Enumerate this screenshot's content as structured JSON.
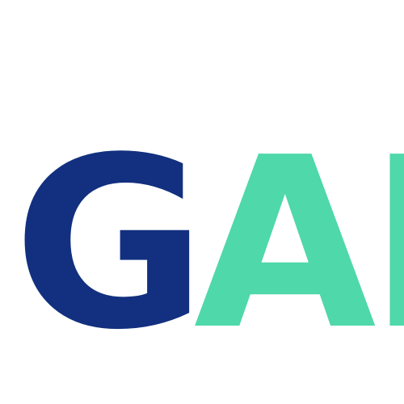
{
  "logo": {
    "primary_text": "G",
    "secondary_text": "APIs",
    "primary_color": "#12307f",
    "secondary_color": "#4fd8a9"
  }
}
